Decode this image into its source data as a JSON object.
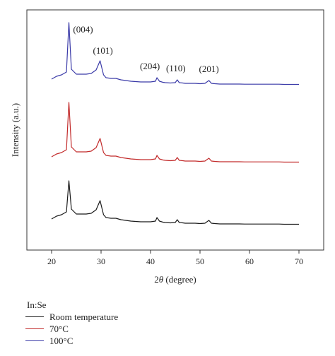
{
  "chart_data": {
    "type": "line",
    "xlabel": "2θ (degree)",
    "ylabel": "Intensity (a.u.)",
    "xlim": [
      15,
      75
    ],
    "xticks": [
      20,
      30,
      40,
      50,
      60,
      70
    ],
    "legend_title": "In:Se",
    "legend_placement": "bottom-left, below plot",
    "grid": false,
    "peaks": [
      {
        "label": "(004)",
        "x": 23.5
      },
      {
        "label": "(101)",
        "x": 29.8
      },
      {
        "label": "(204)",
        "x": 41.3
      },
      {
        "label": "(110)",
        "x": 45.4
      },
      {
        "label": "(201)",
        "x": 51.8
      }
    ],
    "series": [
      {
        "name": "Room temperature",
        "color": "#1a1a1a",
        "x": [
          20,
          21,
          22,
          23,
          23.5,
          24,
          25,
          26,
          27,
          28,
          29,
          29.8,
          30.5,
          31,
          32,
          33,
          34,
          35,
          36,
          37,
          38,
          39,
          40,
          41,
          41.3,
          41.8,
          42.5,
          43,
          44,
          45,
          45.4,
          45.8,
          46.5,
          47,
          48,
          49,
          50,
          51,
          51.8,
          52.3,
          53,
          54,
          55,
          56,
          57,
          58,
          59,
          60,
          61,
          62,
          63,
          64,
          65,
          66,
          67,
          68,
          69,
          70
        ],
        "y": [
          8.0,
          12.0,
          14.0,
          18.0,
          62.0,
          22.0,
          15.0,
          15.0,
          15.0,
          16.0,
          21.0,
          34.0,
          14.0,
          10.0,
          9.0,
          9.0,
          7.0,
          6.0,
          5.0,
          4.5,
          4.0,
          4.0,
          4.0,
          5.0,
          10.0,
          5.0,
          3.5,
          3.0,
          2.5,
          3.0,
          7.0,
          3.0,
          2.5,
          2.0,
          2.0,
          2.0,
          1.5,
          2.0,
          6.0,
          2.0,
          1.5,
          1.0,
          1.0,
          1.0,
          1.0,
          1.0,
          0.8,
          0.8,
          0.8,
          0.8,
          0.8,
          0.8,
          0.8,
          0.8,
          0.5,
          0.5,
          0.5,
          0.5
        ]
      },
      {
        "name": "70°C",
        "color": "#c22a2a",
        "x": [
          20,
          21,
          22,
          23,
          23.5,
          24,
          25,
          26,
          27,
          28,
          29,
          29.8,
          30.5,
          31,
          32,
          33,
          34,
          35,
          36,
          37,
          38,
          39,
          40,
          41,
          41.3,
          41.8,
          42.5,
          43,
          44,
          45,
          45.4,
          45.8,
          46.5,
          47,
          48,
          49,
          50,
          51,
          51.8,
          52.3,
          53,
          54,
          55,
          56,
          57,
          58,
          59,
          60,
          61,
          62,
          63,
          64,
          65,
          66,
          67,
          68,
          69,
          70
        ],
        "y": [
          8.0,
          12.0,
          14.0,
          18.0,
          85.0,
          22.0,
          15.0,
          15.0,
          15.0,
          16.0,
          21.0,
          34.0,
          14.0,
          10.0,
          9.0,
          9.0,
          7.0,
          6.0,
          5.0,
          4.5,
          4.0,
          4.0,
          4.0,
          5.0,
          10.0,
          5.0,
          3.5,
          3.0,
          2.5,
          3.0,
          7.0,
          3.0,
          2.5,
          2.0,
          2.0,
          2.0,
          1.5,
          2.0,
          6.0,
          2.0,
          1.5,
          1.0,
          1.0,
          1.0,
          1.0,
          1.0,
          0.8,
          0.8,
          0.8,
          0.8,
          0.8,
          0.8,
          0.8,
          0.8,
          0.5,
          0.5,
          0.5,
          0.5
        ]
      },
      {
        "name": "100°C",
        "color": "#3a3aa8",
        "x": [
          20,
          21,
          22,
          23,
          23.5,
          24,
          25,
          26,
          27,
          28,
          29,
          29.8,
          30.5,
          31,
          32,
          33,
          34,
          35,
          36,
          37,
          38,
          39,
          40,
          41,
          41.3,
          41.8,
          42.5,
          43,
          44,
          45,
          45.4,
          45.8,
          46.5,
          47,
          48,
          49,
          50,
          51,
          51.8,
          52.3,
          53,
          54,
          55,
          56,
          57,
          58,
          59,
          60,
          61,
          62,
          63,
          64,
          65,
          66,
          67,
          68,
          69,
          70
        ],
        "y": [
          8.0,
          12.0,
          14.0,
          18.0,
          88.0,
          22.0,
          15.0,
          15.0,
          15.0,
          16.0,
          21.0,
          34.0,
          14.0,
          10.0,
          9.0,
          9.0,
          7.0,
          6.0,
          5.0,
          4.5,
          4.0,
          4.0,
          4.0,
          5.0,
          10.0,
          5.0,
          3.5,
          3.0,
          2.5,
          3.0,
          7.0,
          3.0,
          2.5,
          2.0,
          2.0,
          2.0,
          1.5,
          2.0,
          6.0,
          2.0,
          1.5,
          1.0,
          1.0,
          1.0,
          1.0,
          1.0,
          0.8,
          0.8,
          0.8,
          0.8,
          0.8,
          0.8,
          0.8,
          0.8,
          0.5,
          0.5,
          0.5,
          0.5
        ]
      }
    ]
  }
}
